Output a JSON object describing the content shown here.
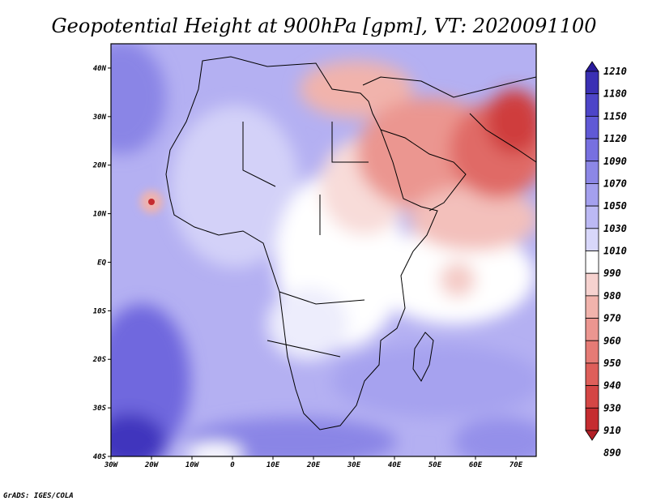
{
  "title": "Geopotential Height at 900hPa [gpm], VT: 2020091100",
  "credit": "GrADS: IGES/COLA",
  "map": {
    "lon_range": [
      -30,
      75
    ],
    "lat_range": [
      -40,
      45
    ],
    "x_ticks": [
      "30W",
      "20W",
      "10W",
      "0",
      "10E",
      "20E",
      "30E",
      "40E",
      "50E",
      "60E",
      "70E"
    ],
    "y_ticks": [
      "40N",
      "30N",
      "20N",
      "10N",
      "EQ",
      "10S",
      "20S",
      "30S",
      "40S"
    ]
  },
  "colorbar": {
    "levels": [
      "1210",
      "1180",
      "1150",
      "1120",
      "1090",
      "1070",
      "1050",
      "1030",
      "1010",
      "990",
      "980",
      "970",
      "960",
      "950",
      "940",
      "930",
      "910",
      "890"
    ],
    "colors": [
      "#2a1b9c",
      "#3a30b4",
      "#4d45c8",
      "#6059d6",
      "#7770e0",
      "#8c87e6",
      "#a4a0ee",
      "#bcb9f4",
      "#d8d7fa",
      "#ffffff",
      "#f6d2cf",
      "#f1b3ac",
      "#eb9690",
      "#e57b75",
      "#de5f5a",
      "#d44645",
      "#c52c30",
      "#b21f26"
    ]
  }
}
